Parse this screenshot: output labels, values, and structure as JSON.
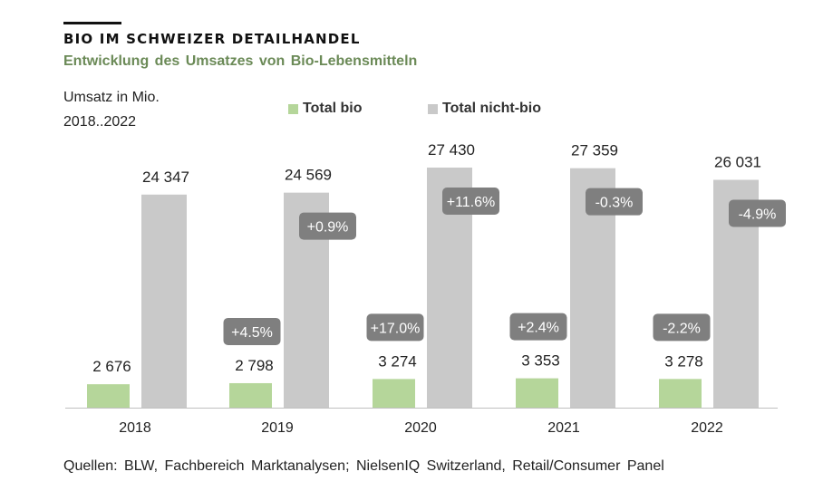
{
  "header": {
    "title": "BIO IM SCHWEIZER DETAILHANDEL",
    "subtitle": "Entwicklung  des Umsatzes  von Bio-Lebensmitteln",
    "unit_label": "Umsatz in Mio.",
    "period_label": "2018..2022"
  },
  "source": "Quellen: BLW, Fachbereich  Marktanalysen;  NielsenIQ  Switzerland,  Retail/Consumer  Panel",
  "colors": {
    "bio": "#b5d69a",
    "non_bio": "#c9c9c9",
    "change_badge": "#7f7f7f",
    "axis": "#bfbfbf"
  },
  "chart_data": {
    "type": "bar",
    "categories": [
      "2018",
      "2019",
      "2020",
      "2021",
      "2022"
    ],
    "series": [
      {
        "name": "Total bio",
        "values": [
          2676,
          2798,
          3274,
          3353,
          3278
        ],
        "labels": [
          "2 676",
          "2 798",
          "3 274",
          "3 353",
          "3 278"
        ],
        "changes": [
          null,
          "+4.5%",
          "+17.0%",
          "+2.4%",
          "-2.2%"
        ]
      },
      {
        "name": "Total nicht-bio",
        "values": [
          24347,
          24569,
          27430,
          27359,
          26031
        ],
        "labels": [
          "24 347",
          "24 569",
          "27 430",
          "27 359",
          "26 031"
        ],
        "changes": [
          null,
          "+0.9%",
          "+11.6%",
          "-0.3%",
          "-4.9%"
        ]
      }
    ],
    "legend_position": "top",
    "grid": false,
    "ylim": [
      0,
      27430
    ]
  }
}
